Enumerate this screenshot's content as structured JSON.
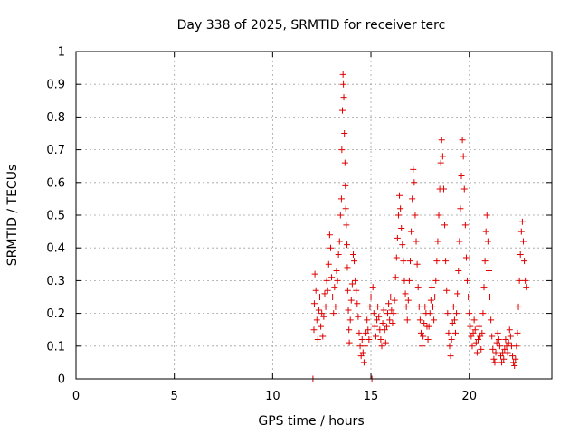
{
  "chart_data": {
    "type": "scatter",
    "title": "Day 338 of 2025, SRMTID for receiver terc",
    "xlabel": "GPS time / hours",
    "ylabel": "SRMTID / TECUs",
    "xlim": [
      0,
      24.2
    ],
    "ylim": [
      0,
      1
    ],
    "xticks": [
      0,
      5,
      10,
      15,
      20
    ],
    "xtick_labels": [
      "0",
      "5",
      "10",
      "15",
      "20"
    ],
    "yticks": [
      0,
      0.1,
      0.2,
      0.3,
      0.4,
      0.5,
      0.6,
      0.7,
      0.8,
      0.9,
      1
    ],
    "ytick_labels": [
      "0",
      "0.1",
      "0.2",
      "0.3",
      "0.4",
      "0.5",
      "0.6",
      "0.7",
      "0.8",
      "0.9",
      "1"
    ],
    "grid": true,
    "marker": "plus",
    "color": "#e00000",
    "series": [
      {
        "name": "SRMTID",
        "points": [
          [
            12.05,
            0.0
          ],
          [
            12.1,
            0.15
          ],
          [
            12.12,
            0.23
          ],
          [
            12.15,
            0.32
          ],
          [
            12.2,
            0.27
          ],
          [
            12.25,
            0.18
          ],
          [
            12.3,
            0.12
          ],
          [
            12.35,
            0.21
          ],
          [
            12.4,
            0.25
          ],
          [
            12.45,
            0.16
          ],
          [
            12.5,
            0.2
          ],
          [
            12.55,
            0.13
          ],
          [
            12.6,
            0.19
          ],
          [
            12.65,
            0.26
          ],
          [
            12.7,
            0.22
          ],
          [
            12.75,
            0.3
          ],
          [
            12.8,
            0.27
          ],
          [
            12.85,
            0.35
          ],
          [
            12.9,
            0.44
          ],
          [
            12.95,
            0.4
          ],
          [
            13.0,
            0.31
          ],
          [
            13.05,
            0.25
          ],
          [
            13.1,
            0.2
          ],
          [
            13.15,
            0.28
          ],
          [
            13.2,
            0.22
          ],
          [
            13.25,
            0.33
          ],
          [
            13.3,
            0.3
          ],
          [
            13.35,
            0.38
          ],
          [
            13.4,
            0.42
          ],
          [
            13.45,
            0.5
          ],
          [
            13.5,
            0.55
          ],
          [
            13.52,
            0.7
          ],
          [
            13.55,
            0.82
          ],
          [
            13.58,
            0.93
          ],
          [
            13.6,
            0.9
          ],
          [
            13.62,
            0.86
          ],
          [
            13.65,
            0.75
          ],
          [
            13.68,
            0.66
          ],
          [
            13.7,
            0.59
          ],
          [
            13.72,
            0.52
          ],
          [
            13.75,
            0.47
          ],
          [
            13.78,
            0.41
          ],
          [
            13.8,
            0.34
          ],
          [
            13.82,
            0.27
          ],
          [
            13.85,
            0.21
          ],
          [
            13.88,
            0.15
          ],
          [
            13.9,
            0.11
          ],
          [
            13.95,
            0.18
          ],
          [
            14.0,
            0.24
          ],
          [
            14.05,
            0.29
          ],
          [
            14.1,
            0.38
          ],
          [
            14.15,
            0.36
          ],
          [
            14.2,
            0.3
          ],
          [
            14.25,
            0.27
          ],
          [
            14.3,
            0.23
          ],
          [
            14.35,
            0.19
          ],
          [
            14.4,
            0.14
          ],
          [
            14.45,
            0.1
          ],
          [
            14.5,
            0.07
          ],
          [
            14.55,
            0.12
          ],
          [
            14.6,
            0.08
          ],
          [
            14.65,
            0.05
          ],
          [
            14.7,
            0.1
          ],
          [
            14.75,
            0.14
          ],
          [
            14.8,
            0.18
          ],
          [
            14.85,
            0.15
          ],
          [
            14.9,
            0.12
          ],
          [
            14.95,
            0.22
          ],
          [
            15.0,
            0.25
          ],
          [
            15.05,
            0.0
          ],
          [
            15.1,
            0.28
          ],
          [
            15.15,
            0.2
          ],
          [
            15.2,
            0.16
          ],
          [
            15.25,
            0.13
          ],
          [
            15.3,
            0.18
          ],
          [
            15.35,
            0.22
          ],
          [
            15.4,
            0.19
          ],
          [
            15.45,
            0.15
          ],
          [
            15.5,
            0.12
          ],
          [
            15.55,
            0.1
          ],
          [
            15.6,
            0.17
          ],
          [
            15.65,
            0.21
          ],
          [
            15.7,
            0.15
          ],
          [
            15.75,
            0.11
          ],
          [
            15.8,
            0.16
          ],
          [
            15.85,
            0.2
          ],
          [
            15.9,
            0.23
          ],
          [
            15.95,
            0.18
          ],
          [
            16.0,
            0.25
          ],
          [
            16.05,
            0.21
          ],
          [
            16.1,
            0.17
          ],
          [
            16.15,
            0.2
          ],
          [
            16.2,
            0.24
          ],
          [
            16.25,
            0.31
          ],
          [
            16.3,
            0.37
          ],
          [
            16.35,
            0.43
          ],
          [
            16.4,
            0.5
          ],
          [
            16.45,
            0.56
          ],
          [
            16.5,
            0.52
          ],
          [
            16.55,
            0.46
          ],
          [
            16.6,
            0.41
          ],
          [
            16.65,
            0.36
          ],
          [
            16.7,
            0.3
          ],
          [
            16.75,
            0.26
          ],
          [
            16.8,
            0.22
          ],
          [
            16.85,
            0.18
          ],
          [
            16.9,
            0.24
          ],
          [
            16.95,
            0.3
          ],
          [
            17.0,
            0.36
          ],
          [
            17.05,
            0.45
          ],
          [
            17.1,
            0.55
          ],
          [
            17.15,
            0.64
          ],
          [
            17.2,
            0.6
          ],
          [
            17.25,
            0.5
          ],
          [
            17.3,
            0.42
          ],
          [
            17.35,
            0.35
          ],
          [
            17.4,
            0.28
          ],
          [
            17.45,
            0.22
          ],
          [
            17.5,
            0.18
          ],
          [
            17.55,
            0.14
          ],
          [
            17.6,
            0.1
          ],
          [
            17.65,
            0.13
          ],
          [
            17.7,
            0.17
          ],
          [
            17.75,
            0.22
          ],
          [
            17.8,
            0.2
          ],
          [
            17.85,
            0.16
          ],
          [
            17.9,
            0.12
          ],
          [
            17.95,
            0.16
          ],
          [
            18.0,
            0.2
          ],
          [
            18.05,
            0.24
          ],
          [
            18.1,
            0.28
          ],
          [
            18.15,
            0.22
          ],
          [
            18.2,
            0.18
          ],
          [
            18.25,
            0.25
          ],
          [
            18.3,
            0.3
          ],
          [
            18.35,
            0.36
          ],
          [
            18.4,
            0.42
          ],
          [
            18.45,
            0.5
          ],
          [
            18.5,
            0.58
          ],
          [
            18.55,
            0.66
          ],
          [
            18.6,
            0.73
          ],
          [
            18.65,
            0.68
          ],
          [
            18.7,
            0.58
          ],
          [
            18.75,
            0.47
          ],
          [
            18.8,
            0.36
          ],
          [
            18.85,
            0.27
          ],
          [
            18.9,
            0.2
          ],
          [
            18.95,
            0.14
          ],
          [
            19.0,
            0.1
          ],
          [
            19.05,
            0.07
          ],
          [
            19.1,
            0.12
          ],
          [
            19.15,
            0.17
          ],
          [
            19.2,
            0.22
          ],
          [
            19.25,
            0.18
          ],
          [
            19.3,
            0.14
          ],
          [
            19.35,
            0.2
          ],
          [
            19.4,
            0.26
          ],
          [
            19.45,
            0.33
          ],
          [
            19.5,
            0.42
          ],
          [
            19.55,
            0.52
          ],
          [
            19.6,
            0.62
          ],
          [
            19.65,
            0.73
          ],
          [
            19.7,
            0.68
          ],
          [
            19.75,
            0.58
          ],
          [
            19.8,
            0.47
          ],
          [
            19.85,
            0.37
          ],
          [
            19.9,
            0.3
          ],
          [
            19.95,
            0.25
          ],
          [
            20.0,
            0.2
          ],
          [
            20.05,
            0.16
          ],
          [
            20.1,
            0.13
          ],
          [
            20.15,
            0.1
          ],
          [
            20.2,
            0.14
          ],
          [
            20.25,
            0.18
          ],
          [
            20.3,
            0.15
          ],
          [
            20.35,
            0.11
          ],
          [
            20.4,
            0.08
          ],
          [
            20.45,
            0.12
          ],
          [
            20.5,
            0.16
          ],
          [
            20.55,
            0.13
          ],
          [
            20.6,
            0.09
          ],
          [
            20.65,
            0.14
          ],
          [
            20.7,
            0.2
          ],
          [
            20.75,
            0.28
          ],
          [
            20.8,
            0.36
          ],
          [
            20.85,
            0.45
          ],
          [
            20.9,
            0.5
          ],
          [
            20.95,
            0.42
          ],
          [
            21.0,
            0.33
          ],
          [
            21.05,
            0.25
          ],
          [
            21.1,
            0.18
          ],
          [
            21.15,
            0.13
          ],
          [
            21.2,
            0.09
          ],
          [
            21.25,
            0.06
          ],
          [
            21.3,
            0.05
          ],
          [
            21.35,
            0.08
          ],
          [
            21.4,
            0.11
          ],
          [
            21.45,
            0.14
          ],
          [
            21.5,
            0.12
          ],
          [
            21.55,
            0.1
          ],
          [
            21.6,
            0.07
          ],
          [
            21.65,
            0.05
          ],
          [
            21.7,
            0.08
          ],
          [
            21.75,
            0.06
          ],
          [
            21.8,
            0.09
          ],
          [
            21.85,
            0.12
          ],
          [
            21.9,
            0.1
          ],
          [
            21.95,
            0.08
          ],
          [
            22.0,
            0.11
          ],
          [
            22.05,
            0.15
          ],
          [
            22.1,
            0.13
          ],
          [
            22.15,
            0.1
          ],
          [
            22.2,
            0.07
          ],
          [
            22.25,
            0.05
          ],
          [
            22.3,
            0.04
          ],
          [
            22.35,
            0.06
          ],
          [
            22.4,
            0.1
          ],
          [
            22.45,
            0.14
          ],
          [
            22.5,
            0.22
          ],
          [
            22.55,
            0.3
          ],
          [
            22.6,
            0.38
          ],
          [
            22.65,
            0.45
          ],
          [
            22.7,
            0.48
          ],
          [
            22.75,
            0.42
          ],
          [
            22.8,
            0.36
          ],
          [
            22.85,
            0.3
          ],
          [
            22.9,
            0.28
          ]
        ]
      }
    ]
  }
}
